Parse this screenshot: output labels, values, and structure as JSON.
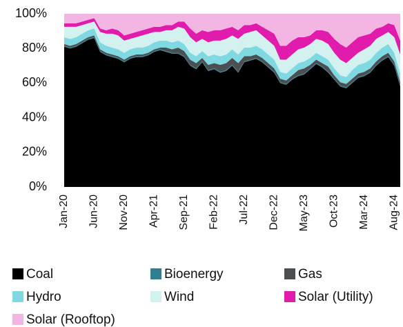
{
  "chart_data": {
    "type": "stacked_area",
    "categories": [
      "Jan-20",
      null,
      null,
      null,
      null,
      "Jun-20",
      null,
      null,
      null,
      null,
      "Nov-20",
      null,
      null,
      null,
      null,
      "Apr-21",
      null,
      null,
      null,
      null,
      "Sep-21",
      null,
      null,
      null,
      null,
      "Feb-22",
      null,
      null,
      null,
      null,
      "Jul-22",
      null,
      null,
      null,
      null,
      "Dec-22",
      null,
      null,
      null,
      null,
      "May-23",
      null,
      null,
      null,
      null,
      "Oct-23",
      null,
      null,
      null,
      null,
      "Mar-24",
      null,
      null,
      null,
      null,
      "Aug-24",
      null
    ],
    "series": [
      {
        "name": "Coal",
        "color": "#000000",
        "values": [
          81,
          80,
          81,
          83,
          85,
          86,
          78,
          76,
          75,
          74,
          72,
          74,
          75,
          75,
          76,
          78,
          79,
          78,
          77,
          77,
          75,
          70,
          68,
          72,
          67,
          68,
          66,
          67,
          70,
          66,
          72,
          73,
          74,
          72,
          69,
          66,
          60,
          59,
          62,
          64,
          65,
          68,
          71,
          69,
          66,
          62,
          58,
          57,
          60,
          63,
          64,
          66,
          70,
          73,
          75,
          70,
          58
        ]
      },
      {
        "name": "Bioenergy",
        "color": "#2e7f90",
        "values": [
          0.5,
          0.5,
          0.5,
          0.5,
          0.5,
          0.5,
          0.5,
          0.5,
          0.5,
          0.5,
          0.5,
          0.5,
          0.5,
          0.5,
          0.5,
          0.5,
          0.5,
          0.5,
          0.5,
          0.5,
          0.5,
          0.5,
          0.5,
          0.5,
          0.5,
          0.5,
          0.5,
          0.5,
          0.5,
          0.5,
          0.5,
          0.5,
          0.5,
          0.5,
          0.5,
          0.5,
          0.5,
          0.5,
          0.5,
          0.5,
          0.5,
          0.5,
          0.5,
          0.5,
          0.5,
          0.5,
          0.5,
          0.5,
          0.5,
          0.5,
          0.5,
          0.5,
          0.5,
          0.5,
          0.5,
          0.5,
          0.5
        ]
      },
      {
        "name": "Gas",
        "color": "#4b4f52",
        "values": [
          1,
          1,
          1,
          1,
          1,
          1,
          1,
          1,
          1,
          1,
          1,
          1,
          1,
          1,
          1,
          1,
          1,
          2,
          2,
          3,
          3,
          3,
          3,
          2,
          3,
          3,
          4,
          4,
          4,
          5,
          3,
          2,
          2,
          2,
          2,
          2,
          2,
          2,
          2,
          3,
          3,
          2,
          2,
          2,
          3,
          2,
          2,
          2,
          2,
          2,
          2,
          2,
          2,
          2,
          2,
          2,
          2
        ]
      },
      {
        "name": "Hydro",
        "color": "#7fd9e2",
        "values": [
          4,
          4,
          4,
          4,
          4,
          4,
          4,
          4,
          4,
          4,
          4,
          4,
          4,
          4,
          4,
          4,
          4,
          4,
          4,
          4,
          4,
          4,
          4,
          4,
          5,
          5,
          5,
          5,
          5,
          5,
          5,
          5,
          5,
          5,
          5,
          5,
          4,
          4,
          4,
          4,
          4,
          4,
          4,
          4,
          4,
          4,
          4,
          4,
          5,
          5,
          5,
          5,
          5,
          5,
          5,
          5,
          5
        ]
      },
      {
        "name": "Wind",
        "color": "#d3f2ef",
        "values": [
          6,
          7,
          6,
          5,
          4,
          4,
          6,
          7,
          8,
          8,
          7,
          6,
          6,
          7,
          7,
          6,
          5,
          6,
          7,
          8,
          9,
          9,
          8,
          7,
          8,
          8,
          9,
          9,
          8,
          9,
          8,
          9,
          9,
          8,
          8,
          8,
          7,
          8,
          8,
          8,
          8,
          8,
          8,
          9,
          9,
          9,
          9,
          8,
          7,
          7,
          8,
          8,
          8,
          7,
          7,
          9,
          11
        ]
      },
      {
        "name": "Solar (Utility)",
        "color": "#e11bab",
        "values": [
          2,
          2,
          2,
          2,
          2,
          2,
          2,
          2,
          3,
          3,
          3,
          3,
          3,
          3,
          3,
          3,
          3,
          3,
          3,
          3,
          4,
          5,
          5,
          5,
          6,
          6,
          6,
          6,
          5,
          5,
          5,
          4,
          4,
          5,
          6,
          7,
          8,
          8,
          8,
          7,
          6,
          5,
          5,
          6,
          7,
          8,
          9,
          9,
          9,
          9,
          8,
          7,
          6,
          5,
          5,
          7,
          8
        ]
      },
      {
        "name": "Solar (Rooftop)",
        "color": "#f3b6e2",
        "values": [
          5.5,
          5.5,
          5.5,
          4.5,
          3.5,
          2.5,
          8.5,
          9.5,
          8.5,
          9.5,
          12.5,
          11.5,
          10.5,
          9.5,
          8.5,
          7.5,
          7.5,
          6.5,
          6.5,
          4.5,
          4.5,
          8.5,
          11.5,
          9.5,
          10.5,
          9.5,
          9.5,
          8.5,
          7.5,
          9.5,
          6.5,
          6.5,
          5.5,
          7.5,
          9.5,
          11.5,
          18.5,
          18.5,
          15.5,
          13.5,
          13.5,
          12.5,
          9.5,
          9.5,
          10.5,
          14.5,
          17.5,
          19.5,
          16.5,
          13.5,
          12.5,
          11.5,
          8.5,
          7.5,
          5.5,
          6.5,
          15.5
        ]
      }
    ],
    "ylim": [
      0,
      100
    ],
    "yticks": [
      {
        "value": 0,
        "label": "0%"
      },
      {
        "value": 20,
        "label": "20%"
      },
      {
        "value": 40,
        "label": "40%"
      },
      {
        "value": 60,
        "label": "60%"
      },
      {
        "value": 80,
        "label": "80%"
      },
      {
        "value": 100,
        "label": "100%"
      }
    ],
    "grid": false
  }
}
